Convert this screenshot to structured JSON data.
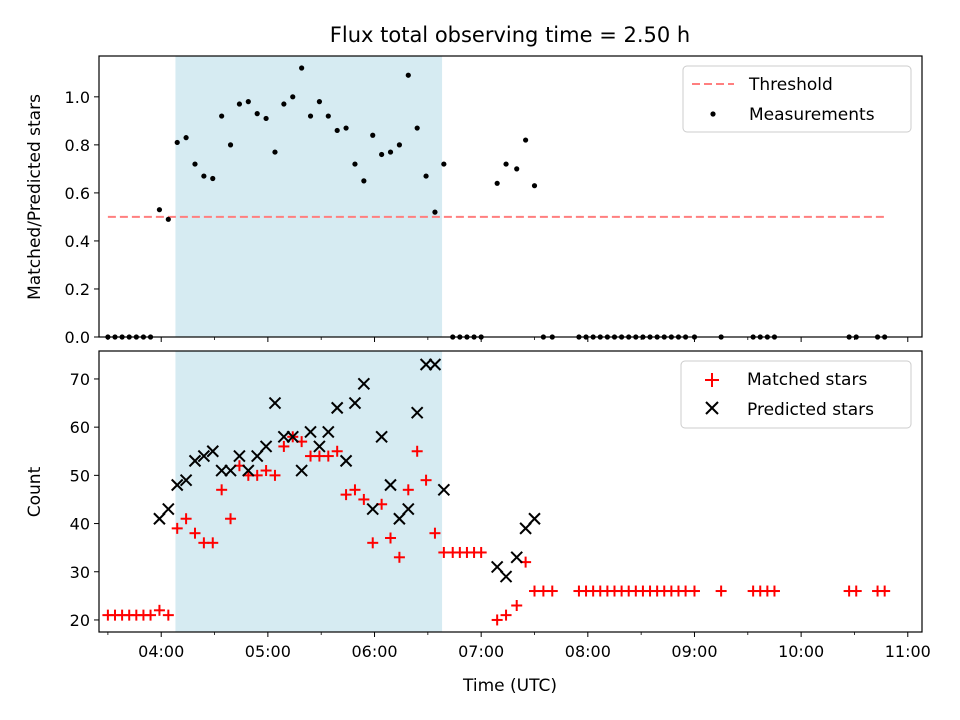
{
  "figure": {
    "title": "Flux total observing time = 2.50 h",
    "xlabel": "Time (UTC)",
    "highlight_color": "#add8e6",
    "highlight_start": "04:08",
    "highlight_end": "06:38"
  },
  "chart_data": [
    {
      "type": "scatter",
      "title": "Flux total observing time = 2.50 h",
      "ylabel": "Matched/Predicted stars",
      "xlim": [
        "03:25",
        "11:08"
      ],
      "ylim": [
        0,
        1.17
      ],
      "x_ticks": [
        "04:00",
        "05:00",
        "06:00",
        "07:00",
        "08:00",
        "09:00",
        "10:00",
        "11:00"
      ],
      "y_ticks": [
        "0.0",
        "0.2",
        "0.4",
        "0.6",
        "0.8",
        "1.0"
      ],
      "legend_position": "top-right",
      "threshold": {
        "name": "Threshold",
        "value": 0.5,
        "x_range": [
          "03:30",
          "10:48"
        ],
        "color": "#ff7f7f",
        "style": "dashed"
      },
      "series": [
        {
          "name": "Measurements",
          "color": "#000000",
          "marker": "dot",
          "points": [
            [
              "03:30",
              0
            ],
            [
              "03:34",
              0
            ],
            [
              "03:38",
              0
            ],
            [
              "03:42",
              0
            ],
            [
              "03:46",
              0
            ],
            [
              "03:50",
              0
            ],
            [
              "03:54",
              0
            ],
            [
              "03:59",
              0.53
            ],
            [
              "04:04",
              0.49
            ],
            [
              "04:09",
              0.81
            ],
            [
              "04:14",
              0.83
            ],
            [
              "04:19",
              0.72
            ],
            [
              "04:24",
              0.67
            ],
            [
              "04:29",
              0.66
            ],
            [
              "04:34",
              0.92
            ],
            [
              "04:39",
              0.8
            ],
            [
              "04:44",
              0.97
            ],
            [
              "04:49",
              0.98
            ],
            [
              "04:54",
              0.93
            ],
            [
              "04:59",
              0.91
            ],
            [
              "05:04",
              0.77
            ],
            [
              "05:09",
              0.97
            ],
            [
              "05:14",
              1.0
            ],
            [
              "05:19",
              1.12
            ],
            [
              "05:24",
              0.92
            ],
            [
              "05:29",
              0.98
            ],
            [
              "05:34",
              0.92
            ],
            [
              "05:39",
              0.86
            ],
            [
              "05:44",
              0.87
            ],
            [
              "05:49",
              0.72
            ],
            [
              "05:54",
              0.65
            ],
            [
              "05:59",
              0.84
            ],
            [
              "06:04",
              0.76
            ],
            [
              "06:09",
              0.77
            ],
            [
              "06:14",
              0.8
            ],
            [
              "06:19",
              1.09
            ],
            [
              "06:24",
              0.87
            ],
            [
              "06:29",
              0.67
            ],
            [
              "06:34",
              0.52
            ],
            [
              "06:39",
              0.72
            ],
            [
              "06:44",
              0
            ],
            [
              "06:48",
              0
            ],
            [
              "06:52",
              0
            ],
            [
              "06:56",
              0
            ],
            [
              "07:00",
              0
            ],
            [
              "07:09",
              0.64
            ],
            [
              "07:14",
              0.72
            ],
            [
              "07:20",
              0.7
            ],
            [
              "07:25",
              0.82
            ],
            [
              "07:30",
              0.63
            ],
            [
              "07:35",
              0
            ],
            [
              "07:40",
              0
            ],
            [
              "07:55",
              0
            ],
            [
              "07:59",
              0
            ],
            [
              "08:03",
              0
            ],
            [
              "08:07",
              0
            ],
            [
              "08:11",
              0
            ],
            [
              "08:15",
              0
            ],
            [
              "08:19",
              0
            ],
            [
              "08:23",
              0
            ],
            [
              "08:27",
              0
            ],
            [
              "08:31",
              0
            ],
            [
              "08:35",
              0
            ],
            [
              "08:39",
              0
            ],
            [
              "08:43",
              0
            ],
            [
              "08:47",
              0
            ],
            [
              "08:51",
              0
            ],
            [
              "08:55",
              0
            ],
            [
              "09:00",
              0
            ],
            [
              "09:15",
              0
            ],
            [
              "09:33",
              0
            ],
            [
              "09:37",
              0
            ],
            [
              "09:41",
              0
            ],
            [
              "09:45",
              0
            ],
            [
              "10:27",
              0
            ],
            [
              "10:31",
              0
            ],
            [
              "10:43",
              0
            ],
            [
              "10:47",
              0
            ]
          ]
        }
      ]
    },
    {
      "type": "scatter",
      "ylabel": "Count",
      "xlabel": "Time (UTC)",
      "xlim": [
        "03:25",
        "11:08"
      ],
      "ylim": [
        17.5,
        75.8
      ],
      "x_ticks": [
        "04:00",
        "05:00",
        "06:00",
        "07:00",
        "08:00",
        "09:00",
        "10:00",
        "11:00"
      ],
      "y_ticks": [
        "20",
        "30",
        "40",
        "50",
        "60",
        "70"
      ],
      "legend_position": "top-right",
      "series": [
        {
          "name": "Matched stars",
          "color": "#ff0000",
          "marker": "plus",
          "points": [
            [
              "03:30",
              21
            ],
            [
              "03:34",
              21
            ],
            [
              "03:38",
              21
            ],
            [
              "03:42",
              21
            ],
            [
              "03:46",
              21
            ],
            [
              "03:50",
              21
            ],
            [
              "03:54",
              21
            ],
            [
              "03:59",
              22
            ],
            [
              "04:04",
              21
            ],
            [
              "04:09",
              39
            ],
            [
              "04:14",
              41
            ],
            [
              "04:19",
              38
            ],
            [
              "04:24",
              36
            ],
            [
              "04:29",
              36
            ],
            [
              "04:34",
              47
            ],
            [
              "04:39",
              41
            ],
            [
              "04:44",
              52
            ],
            [
              "04:49",
              50
            ],
            [
              "04:54",
              50
            ],
            [
              "04:59",
              51
            ],
            [
              "05:04",
              50
            ],
            [
              "05:09",
              56
            ],
            [
              "05:14",
              58
            ],
            [
              "05:19",
              57
            ],
            [
              "05:24",
              54
            ],
            [
              "05:29",
              54
            ],
            [
              "05:34",
              54
            ],
            [
              "05:39",
              55
            ],
            [
              "05:44",
              46
            ],
            [
              "05:49",
              47
            ],
            [
              "05:54",
              45
            ],
            [
              "05:59",
              36
            ],
            [
              "06:04",
              44
            ],
            [
              "06:09",
              37
            ],
            [
              "06:14",
              33
            ],
            [
              "06:19",
              47
            ],
            [
              "06:24",
              55
            ],
            [
              "06:29",
              49
            ],
            [
              "06:34",
              38
            ],
            [
              "06:39",
              34
            ],
            [
              "06:44",
              34
            ],
            [
              "06:48",
              34
            ],
            [
              "06:52",
              34
            ],
            [
              "06:56",
              34
            ],
            [
              "07:00",
              34
            ],
            [
              "07:09",
              20
            ],
            [
              "07:14",
              21
            ],
            [
              "07:20",
              23
            ],
            [
              "07:25",
              32
            ],
            [
              "07:30",
              26
            ],
            [
              "07:35",
              26
            ],
            [
              "07:40",
              26
            ],
            [
              "07:55",
              26
            ],
            [
              "07:59",
              26
            ],
            [
              "08:03",
              26
            ],
            [
              "08:07",
              26
            ],
            [
              "08:11",
              26
            ],
            [
              "08:15",
              26
            ],
            [
              "08:19",
              26
            ],
            [
              "08:23",
              26
            ],
            [
              "08:27",
              26
            ],
            [
              "08:31",
              26
            ],
            [
              "08:35",
              26
            ],
            [
              "08:39",
              26
            ],
            [
              "08:43",
              26
            ],
            [
              "08:47",
              26
            ],
            [
              "08:51",
              26
            ],
            [
              "08:55",
              26
            ],
            [
              "09:00",
              26
            ],
            [
              "09:15",
              26
            ],
            [
              "09:33",
              26
            ],
            [
              "09:37",
              26
            ],
            [
              "09:41",
              26
            ],
            [
              "09:45",
              26
            ],
            [
              "10:27",
              26
            ],
            [
              "10:31",
              26
            ],
            [
              "10:43",
              26
            ],
            [
              "10:47",
              26
            ]
          ]
        },
        {
          "name": "Predicted stars",
          "color": "#000000",
          "marker": "x",
          "points": [
            [
              "03:59",
              41
            ],
            [
              "04:04",
              43
            ],
            [
              "04:09",
              48
            ],
            [
              "04:14",
              49
            ],
            [
              "04:19",
              53
            ],
            [
              "04:24",
              54
            ],
            [
              "04:29",
              55
            ],
            [
              "04:34",
              51
            ],
            [
              "04:39",
              51
            ],
            [
              "04:44",
              54
            ],
            [
              "04:49",
              51
            ],
            [
              "04:54",
              54
            ],
            [
              "04:59",
              56
            ],
            [
              "05:04",
              65
            ],
            [
              "05:09",
              58
            ],
            [
              "05:14",
              58
            ],
            [
              "05:19",
              51
            ],
            [
              "05:24",
              59
            ],
            [
              "05:29",
              56
            ],
            [
              "05:34",
              59
            ],
            [
              "05:39",
              64
            ],
            [
              "05:44",
              53
            ],
            [
              "05:49",
              65
            ],
            [
              "05:54",
              69
            ],
            [
              "05:59",
              43
            ],
            [
              "06:04",
              58
            ],
            [
              "06:09",
              48
            ],
            [
              "06:14",
              41
            ],
            [
              "06:19",
              43
            ],
            [
              "06:24",
              63
            ],
            [
              "06:29",
              73
            ],
            [
              "06:34",
              73
            ],
            [
              "06:39",
              47
            ],
            [
              "07:09",
              31
            ],
            [
              "07:14",
              29
            ],
            [
              "07:20",
              33
            ],
            [
              "07:25",
              39
            ],
            [
              "07:30",
              41
            ]
          ]
        }
      ]
    }
  ]
}
